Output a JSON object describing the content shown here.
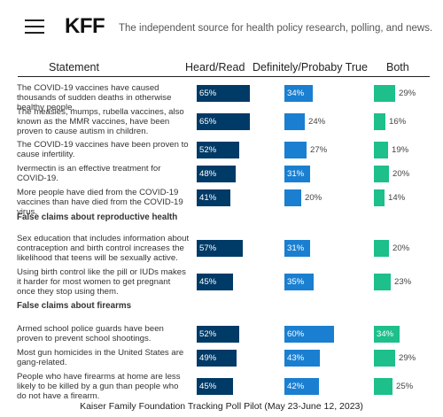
{
  "header": {
    "logo": "KFF",
    "tagline": "The independent source for health policy research, polling, and news."
  },
  "columns": {
    "statement": "Statement",
    "heard": "Heard/Read",
    "true": "Definitely/Probaby True",
    "both": "Both"
  },
  "colors": {
    "heard": "#003a66",
    "true": "#1a7fd0",
    "both": "#1dbf8a"
  },
  "chart_data": {
    "type": "bar",
    "xlim": [
      0,
      100
    ],
    "rows": [
      {
        "kind": "item",
        "statement": "The COVID-19 vaccines have caused thousands of sudden deaths in otherwise healthy people.",
        "heard": 65,
        "true": 34,
        "both": 29
      },
      {
        "kind": "item",
        "statement": "The measles, mumps, rubella vaccines, also known as the MMR vaccines, have been proven to cause autism in children.",
        "heard": 65,
        "true": 24,
        "both": 16
      },
      {
        "kind": "item",
        "statement": "The COVID-19 vaccines have been proven to cause infertility.",
        "heard": 52,
        "true": 27,
        "both": 19
      },
      {
        "kind": "item",
        "statement": "Ivermectin is an effective treatment for COVID-19.",
        "heard": 48,
        "true": 31,
        "both": 20
      },
      {
        "kind": "item",
        "statement": "More people have died from the COVID-19 vaccines than have died from the COVID-19 virus.",
        "heard": 41,
        "true": 20,
        "both": 14
      },
      {
        "kind": "section",
        "statement": "False claims about reproductive health"
      },
      {
        "kind": "item",
        "statement": "Sex education that includes information about contraception and birth control increases the likelihood that teens will be sexually active.",
        "heard": 57,
        "true": 31,
        "both": 20
      },
      {
        "kind": "item",
        "statement": "Using birth control like the pill or IUDs makes it harder for most women to get pregnant once they stop using them.",
        "heard": 45,
        "true": 35,
        "both": 23
      },
      {
        "kind": "section",
        "statement": "False claims about firearms"
      },
      {
        "kind": "item",
        "statement": "Armed school police guards have been proven to prevent school shootings.",
        "heard": 52,
        "true": 60,
        "both": 34
      },
      {
        "kind": "item",
        "statement": "Most gun homicides in the United States are gang-related.",
        "heard": 49,
        "true": 43,
        "both": 29
      },
      {
        "kind": "item",
        "statement": "People who have firearms at home are less likely to be killed by a gun than people who do not have a firearm.",
        "heard": 45,
        "true": 42,
        "both": 25
      }
    ],
    "value_suffix": "%"
  },
  "footer": "Kaiser Family Foundation Tracking Poll Pilot (May 23-June 12, 2023)"
}
